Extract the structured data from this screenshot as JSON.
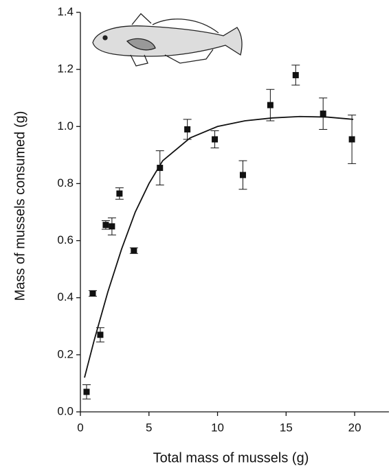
{
  "chart_data": {
    "type": "scatter",
    "x_label": "Total mass of mussels (g)",
    "y_label": "Mass of mussels consumed (g)",
    "xlim": [
      0,
      22.5
    ],
    "ylim": [
      0,
      1.4
    ],
    "xticks": [
      0,
      5,
      10,
      15,
      20
    ],
    "yticks": [
      {
        "value": 0,
        "label": "0.0"
      },
      {
        "value": 0.2,
        "label": "0.2"
      },
      {
        "value": 0.4,
        "label": "0.4"
      },
      {
        "value": 0.6,
        "label": "0.6"
      },
      {
        "value": 0.8,
        "label": "0.8"
      },
      {
        "value": 1.0,
        "label": "1.0"
      },
      {
        "value": 1.2,
        "label": "1.2"
      },
      {
        "value": 1.4,
        "label": "1.4"
      }
    ],
    "series": [
      {
        "style": "markers",
        "color": "#111111",
        "x": [
          0.45,
          0.9,
          1.45,
          1.85,
          2.3,
          2.85,
          3.9,
          5.8,
          7.8,
          9.8,
          11.85,
          13.85,
          15.7,
          17.7,
          19.8
        ],
        "values": [
          0.07,
          0.415,
          0.27,
          0.655,
          0.65,
          0.765,
          0.565,
          0.855,
          0.99,
          0.955,
          0.83,
          1.075,
          1.18,
          1.045,
          0.955
        ],
        "errors": [
          0.025,
          0.01,
          0.025,
          0.015,
          0.03,
          0.02,
          0.01,
          0.06,
          0.035,
          0.03,
          0.05,
          0.055,
          0.035,
          0.055,
          0.085
        ]
      },
      {
        "style": "line",
        "color": "#111111",
        "x": [
          0.3,
          1,
          2,
          3,
          4,
          5,
          6,
          8,
          10,
          12,
          14,
          16,
          18,
          19.9
        ],
        "values": [
          0.12,
          0.25,
          0.42,
          0.57,
          0.7,
          0.8,
          0.88,
          0.96,
          1.0,
          1.02,
          1.03,
          1.035,
          1.033,
          1.025
        ]
      }
    ]
  }
}
